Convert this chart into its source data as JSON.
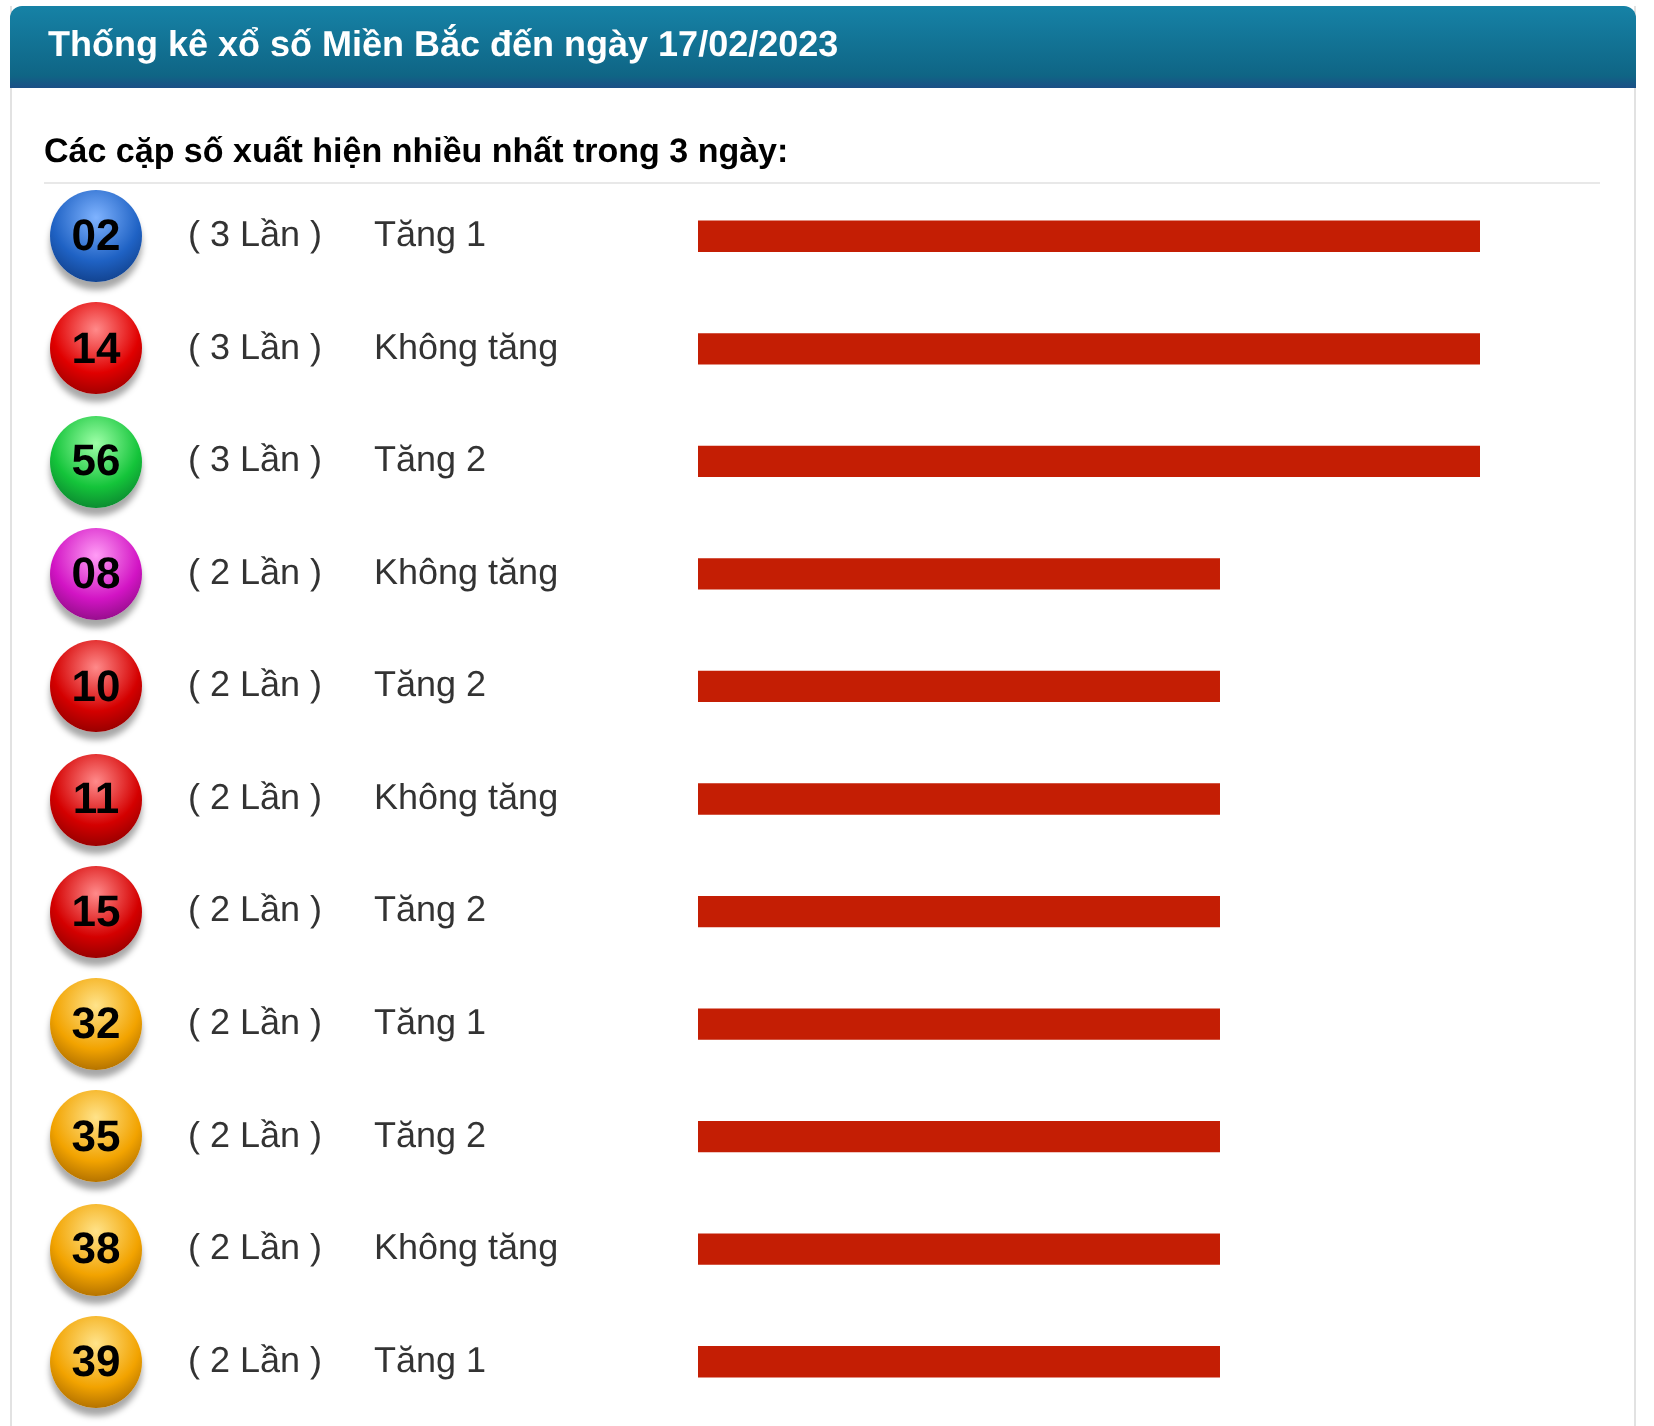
{
  "chart_data": {
    "type": "bar",
    "orientation": "horizontal",
    "title": "Thống kê xổ số Miền Bắc đến ngày 17/02/2023",
    "subtitle": "Các cặp số xuất hiện nhiều nhất trong 3 ngày:",
    "categories": [
      "02",
      "14",
      "56",
      "08",
      "10",
      "11",
      "15",
      "32",
      "35",
      "38",
      "39"
    ],
    "values": [
      3,
      3,
      3,
      2,
      2,
      2,
      2,
      2,
      2,
      2,
      2
    ],
    "color": "#c41e04",
    "value_labels": [
      "( 3 Lần )",
      "( 3 Lần )",
      "( 3 Lần )",
      "( 2 Lần )",
      "( 2 Lần )",
      "( 2 Lần )",
      "( 2 Lần )",
      "( 2 Lần )",
      "( 2 Lần )",
      "( 2 Lần )",
      "( 2 Lần )"
    ],
    "annotations": [
      "Tăng 1",
      "Không tăng",
      "Tăng 2",
      "Không tăng",
      "Tăng 2",
      "Không tăng",
      "Tăng 2",
      "Tăng 1",
      "Tăng 2",
      "Không tăng",
      "Tăng 1"
    ]
  }
}
